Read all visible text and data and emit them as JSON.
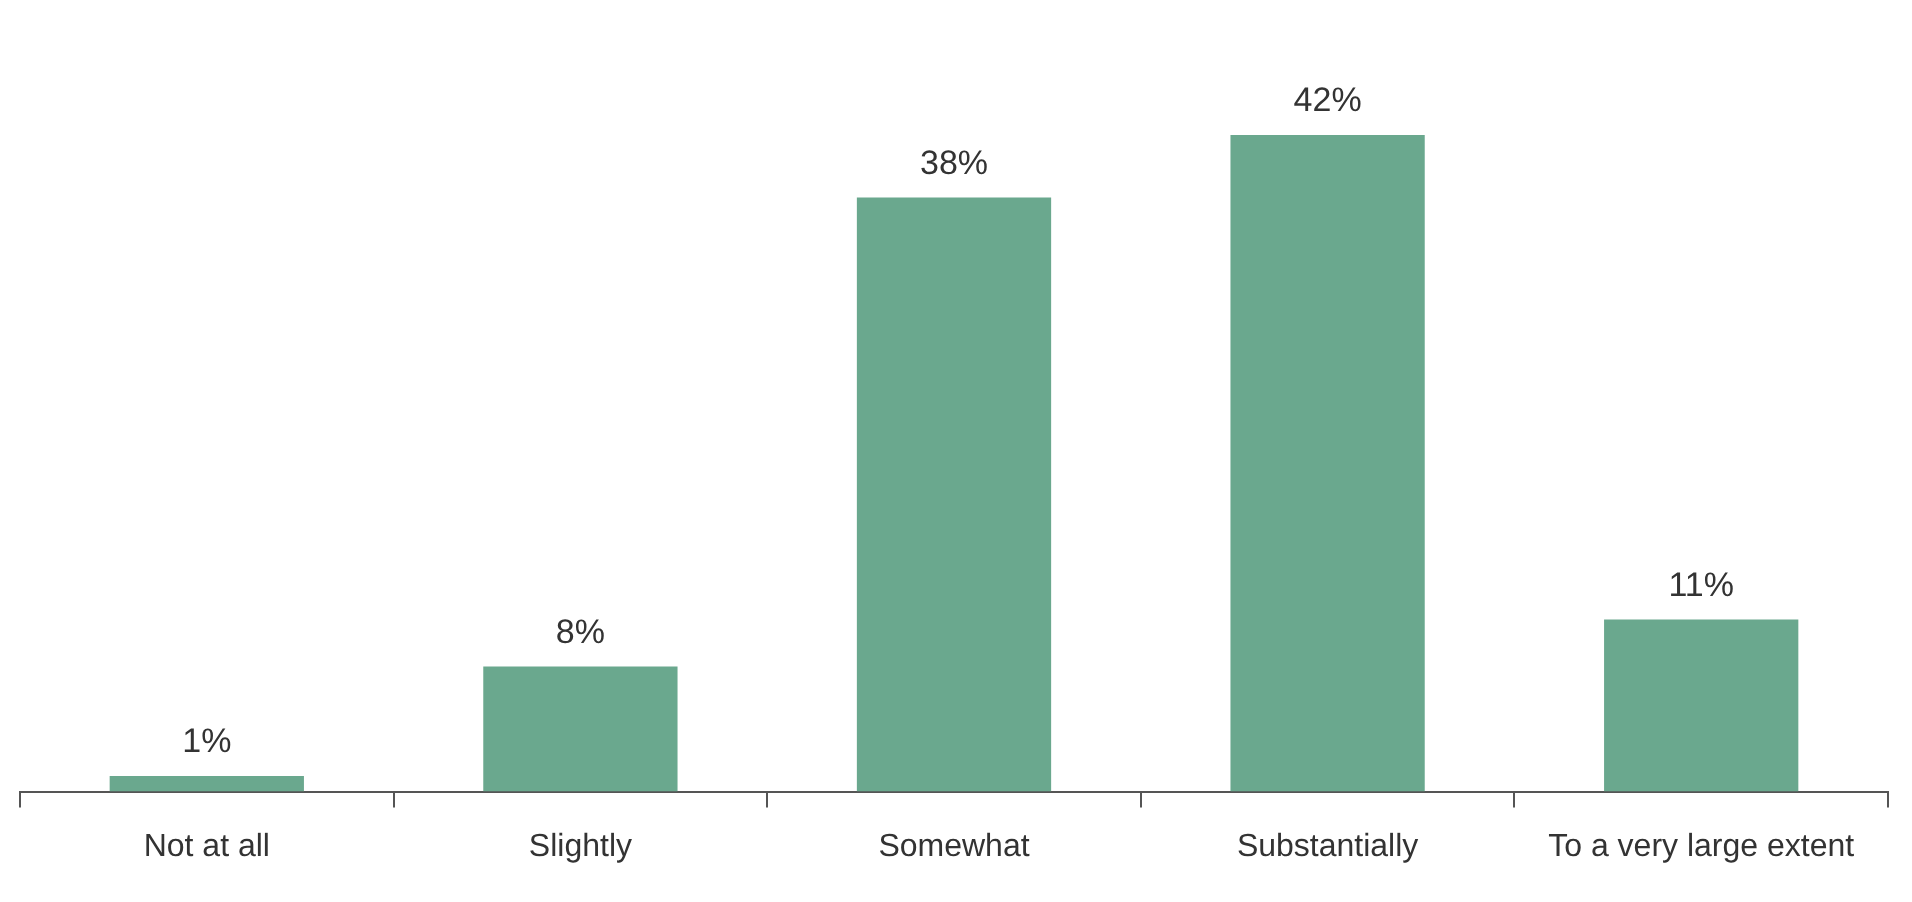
{
  "chart_data": {
    "type": "bar",
    "categories": [
      "Not at all",
      "Slightly",
      "Somewhat",
      "Substantially",
      "To a very large extent"
    ],
    "values": [
      1,
      8,
      38,
      42,
      11
    ],
    "value_labels": [
      "1%",
      "8%",
      "38%",
      "42%",
      "11%"
    ],
    "color": "#6aa88e",
    "grid": false,
    "legend": false
  }
}
